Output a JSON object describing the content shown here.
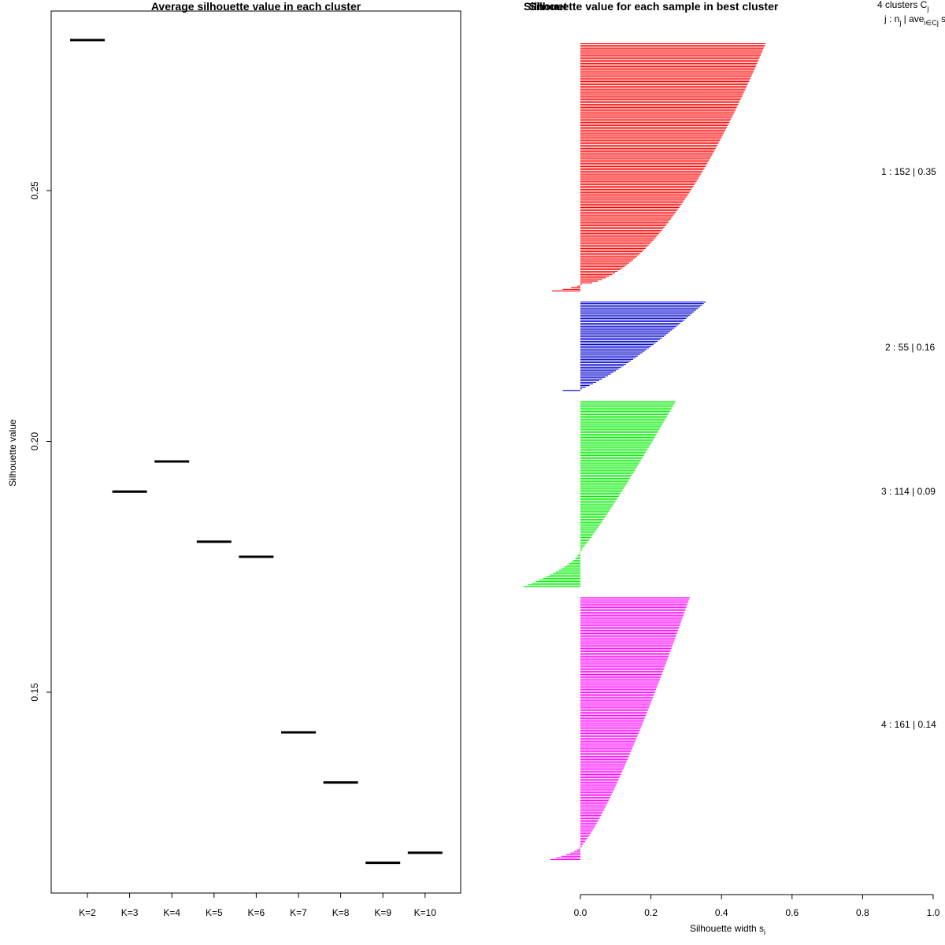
{
  "chart_data": [
    {
      "type": "line",
      "title": "Average silhouette value in each cluster",
      "xlabel": "",
      "ylabel": "Silhouette value",
      "categories": [
        "K=2",
        "K=3",
        "K=4",
        "K=5",
        "K=6",
        "K=7",
        "K=8",
        "K=9",
        "K=10"
      ],
      "values": [
        0.28,
        0.19,
        0.196,
        0.18,
        0.177,
        0.142,
        0.132,
        0.116,
        0.118
      ],
      "yticks": [
        0.15,
        0.2,
        0.25
      ],
      "ytick_labels": [
        "0.15",
        "0.20",
        "0.25"
      ],
      "ylim": [
        0.112,
        0.287
      ],
      "style": "horizontal segment per K"
    },
    {
      "type": "bar",
      "orientation": "horizontal",
      "title": "Silhouette value for each sample in best cluster",
      "title_overlap": "Silhouet",
      "xlabel": "Silhouette width s",
      "xlabel_subscript": "i",
      "xlim": [
        0,
        1
      ],
      "xticks": [
        0,
        0.2,
        0.4,
        0.6,
        0.8,
        1.0
      ],
      "xtick_labels": [
        "0.0",
        "0.2",
        "0.4",
        "0.6",
        "0.8",
        "1.0"
      ],
      "legend": {
        "header": "4  clusters  C",
        "header_sub": "j",
        "sub_header": "j :  n",
        "sub_header_sub": "j",
        "sub_header_rest": " | ave",
        "sub_header_rest_sub": "i∈Cj",
        "sub_header_tail": "  s"
      },
      "series": [
        {
          "name": "1",
          "n": 152,
          "ave": 0.35,
          "label": "1 :  152  |  0.35",
          "color": "#ff0000",
          "max": 0.525,
          "min": -0.08,
          "negatives": 4,
          "shape": 0.55
        },
        {
          "name": "2",
          "n": 55,
          "ave": 0.16,
          "label": "2 :  55  |  0.16",
          "color": "#0000cd",
          "max": 0.355,
          "min": -0.05,
          "negatives": 1,
          "shape": 0.8
        },
        {
          "name": "3",
          "n": 114,
          "ave": 0.09,
          "label": "3 :  114  |  0.09",
          "color": "#00ee00",
          "max": 0.27,
          "min": -0.16,
          "negatives": 22,
          "shape": 0.9
        },
        {
          "name": "4",
          "n": 161,
          "ave": 0.14,
          "label": "4 :  161  |  0.14",
          "color": "#ff00ff",
          "max": 0.31,
          "min": -0.085,
          "negatives": 8,
          "shape": 0.8
        }
      ]
    }
  ]
}
